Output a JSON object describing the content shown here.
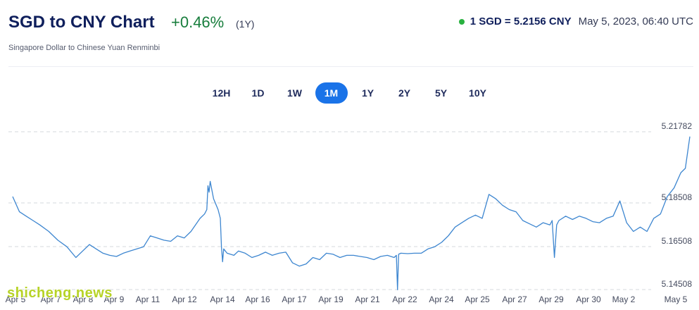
{
  "header": {
    "title": "SGD to CNY Chart",
    "change": "+0.46%",
    "period": "(1Y)",
    "subtitle": "Singapore Dollar to Chinese Yuan Renminbi",
    "rate": "1 SGD = 5.2156 CNY",
    "timestamp": "May 5, 2023, 06:40 UTC"
  },
  "colors": {
    "line": "#3d86d0",
    "accent": "#1a73e8",
    "positive": "#177d3c",
    "live_dot": "#28b13f"
  },
  "range_buttons": [
    {
      "label": "12H",
      "active": false
    },
    {
      "label": "1D",
      "active": false
    },
    {
      "label": "1W",
      "active": false
    },
    {
      "label": "1M",
      "active": true
    },
    {
      "label": "1Y",
      "active": false
    },
    {
      "label": "2Y",
      "active": false
    },
    {
      "label": "5Y",
      "active": false
    },
    {
      "label": "10Y",
      "active": false
    }
  ],
  "watermark": "shicheng.news",
  "chart_data": {
    "type": "line",
    "title": "",
    "xlabel": "",
    "ylabel": "",
    "ylim": [
      5.14508,
      5.21782
    ],
    "y_ticks": [
      "5.21782",
      "5.18508",
      "5.16508",
      "5.14508"
    ],
    "x_tick_labels": [
      "Apr 5",
      "Apr 7",
      "Apr 8",
      "Apr 9",
      "Apr 11",
      "Apr 12",
      "Apr 14",
      "Apr 16",
      "Apr 17",
      "Apr 19",
      "Apr 21",
      "Apr 22",
      "Apr 24",
      "Apr 25",
      "Apr 27",
      "Apr 29",
      "Apr 30",
      "May 2",
      "May 5"
    ],
    "grid": "horizontal dashed",
    "series": [
      {
        "x": [
          0,
          0.3,
          0.6,
          0.9,
          1.2,
          1.6,
          2.0,
          2.4,
          2.8,
          3.1,
          3.4,
          3.7,
          4.0,
          4.3,
          4.6,
          4.9,
          5.2,
          5.5,
          5.8,
          6.1,
          6.4,
          6.7,
          7.0,
          7.3,
          7.6,
          7.9,
          8.1,
          8.3,
          8.5,
          8.6,
          8.65,
          8.7,
          8.75,
          8.9,
          9.1,
          9.2,
          9.25,
          9.3,
          9.35,
          9.5,
          9.8,
          10.0,
          10.3,
          10.6,
          10.9,
          11.2,
          11.5,
          11.8,
          12.1,
          12.4,
          12.7,
          13.0,
          13.3,
          13.6,
          13.9,
          14.2,
          14.5,
          14.8,
          15.1,
          15.4,
          15.7,
          16.0,
          16.3,
          16.6,
          16.9,
          17.0,
          17.05,
          17.1,
          17.2,
          17.5,
          17.8,
          18.1,
          18.4,
          18.7,
          19.0,
          19.3,
          19.6,
          19.9,
          20.2,
          20.5,
          20.8,
          21.1,
          21.4,
          21.7,
          22.0,
          22.3,
          22.6,
          22.9,
          23.2,
          23.5,
          23.8,
          23.9,
          24.0,
          24.1,
          24.2,
          24.5,
          24.8,
          25.1,
          25.4,
          25.7,
          26.0,
          26.3,
          26.6,
          26.9,
          27.2,
          27.5,
          27.8,
          28.1,
          28.4,
          28.7,
          29.0,
          29.3,
          29.6,
          29.8,
          30.0
        ],
        "values": [
          5.188,
          5.181,
          5.179,
          5.177,
          5.175,
          5.172,
          5.168,
          5.165,
          5.16,
          5.163,
          5.166,
          5.164,
          5.162,
          5.161,
          5.1605,
          5.162,
          5.163,
          5.164,
          5.165,
          5.17,
          5.169,
          5.168,
          5.1675,
          5.17,
          5.169,
          5.172,
          5.175,
          5.178,
          5.18,
          5.182,
          5.193,
          5.19,
          5.195,
          5.187,
          5.182,
          5.178,
          5.165,
          5.158,
          5.164,
          5.162,
          5.161,
          5.163,
          5.162,
          5.16,
          5.161,
          5.1625,
          5.161,
          5.162,
          5.1625,
          5.1575,
          5.156,
          5.157,
          5.16,
          5.159,
          5.162,
          5.1615,
          5.16,
          5.161,
          5.161,
          5.1605,
          5.16,
          5.159,
          5.1605,
          5.161,
          5.16,
          5.161,
          5.145,
          5.1615,
          5.162,
          5.1618,
          5.162,
          5.162,
          5.164,
          5.165,
          5.167,
          5.17,
          5.174,
          5.176,
          5.178,
          5.1795,
          5.178,
          5.189,
          5.187,
          5.184,
          5.182,
          5.181,
          5.177,
          5.1755,
          5.174,
          5.176,
          5.175,
          5.177,
          5.16,
          5.175,
          5.177,
          5.179,
          5.1775,
          5.179,
          5.178,
          5.1765,
          5.176,
          5.178,
          5.179,
          5.186,
          5.176,
          5.172,
          5.174,
          5.172,
          5.178,
          5.18,
          5.188,
          5.192,
          5.199,
          5.201,
          5.2156
        ]
      }
    ]
  }
}
